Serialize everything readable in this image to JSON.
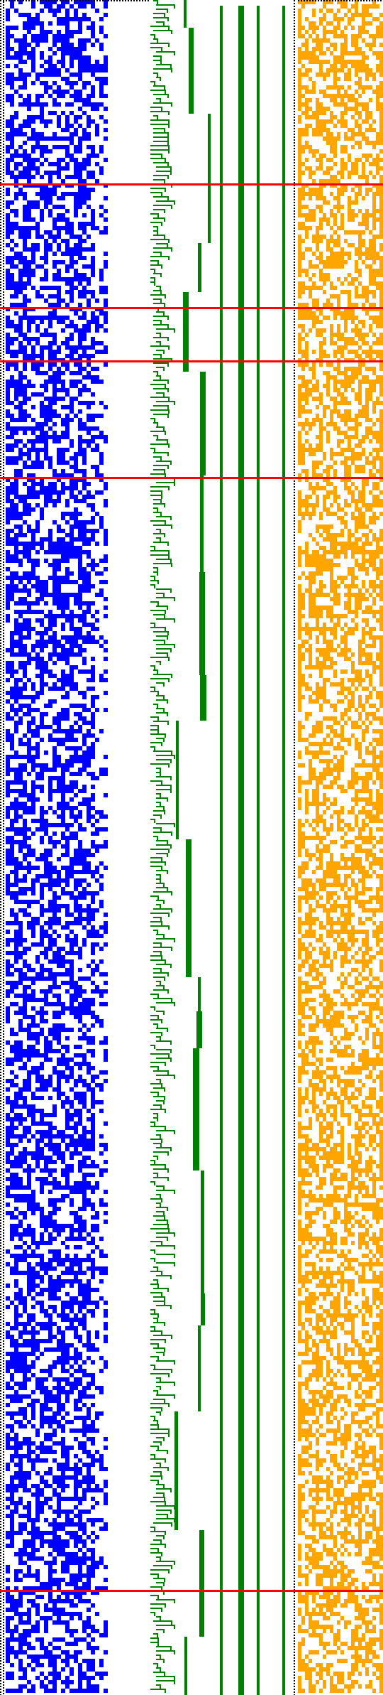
{
  "colors": {
    "background": "#ffffff",
    "left_dots": "#0000ff",
    "tree_edges": "#008000",
    "right_dots": "#ffa500",
    "markers": "#ff0000",
    "border_dots": "#000000"
  },
  "panels": {
    "left_matrix": {
      "columns": 24,
      "rows": 397,
      "fill": 0.55
    },
    "tree": {
      "columns": 10,
      "rows": 397
    },
    "right_matrix": {
      "columns": 24,
      "rows": 397,
      "fill": 0.5
    }
  },
  "markers": {
    "row_fractions": [
      0.1086,
      0.1814,
      0.2129,
      0.2817,
      0.9383
    ]
  }
}
